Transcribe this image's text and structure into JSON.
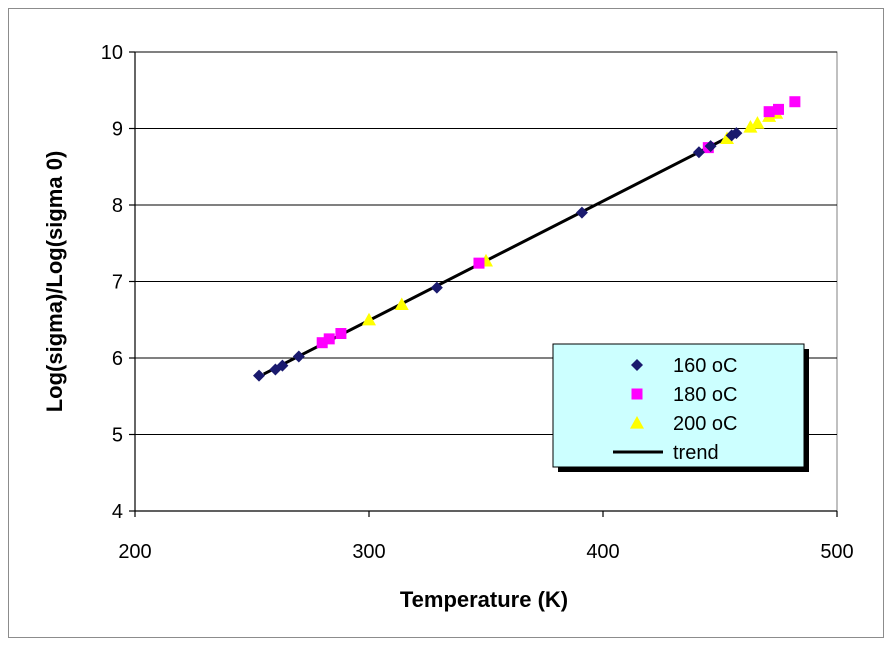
{
  "chart_data": {
    "type": "scatter",
    "title": "",
    "xlabel": "Temperature (K)",
    "ylabel": "Log(sigma)/Log(sigma 0)",
    "xlim": [
      200,
      500
    ],
    "ylim": [
      4,
      10
    ],
    "x_ticks": [
      200,
      300,
      400,
      500
    ],
    "y_ticks": [
      4,
      5,
      6,
      7,
      8,
      9,
      10
    ],
    "grid": "horizontal",
    "legend_position": "bottom-right",
    "series": [
      {
        "name": "160 oC",
        "marker": "diamond",
        "color": "#1a1a6e",
        "points": [
          [
            253,
            5.77
          ],
          [
            260,
            5.85
          ],
          [
            263,
            5.9
          ],
          [
            270,
            6.02
          ],
          [
            329,
            6.92
          ],
          [
            391,
            7.9
          ],
          [
            441,
            8.69
          ],
          [
            446,
            8.77
          ],
          [
            455,
            8.91
          ],
          [
            457,
            8.94
          ]
        ]
      },
      {
        "name": "180 oC",
        "marker": "square",
        "color": "#ff00ff",
        "points": [
          [
            280,
            6.2
          ],
          [
            283,
            6.25
          ],
          [
            288,
            6.32
          ],
          [
            347,
            7.24
          ],
          [
            445,
            8.75
          ],
          [
            471,
            9.22
          ],
          [
            475,
            9.25
          ],
          [
            482,
            9.35
          ]
        ]
      },
      {
        "name": "200 oC",
        "marker": "triangle",
        "color": "#ffff00",
        "points": [
          [
            300,
            6.5
          ],
          [
            314,
            6.7
          ],
          [
            350,
            7.27
          ],
          [
            453,
            8.87
          ],
          [
            463,
            9.02
          ],
          [
            466,
            9.07
          ],
          [
            471,
            9.16
          ],
          [
            474,
            9.2
          ]
        ]
      }
    ],
    "trend": {
      "name": "trend",
      "color": "#000000",
      "points": [
        [
          255,
          5.79
        ],
        [
          457,
          8.94
        ]
      ]
    }
  }
}
